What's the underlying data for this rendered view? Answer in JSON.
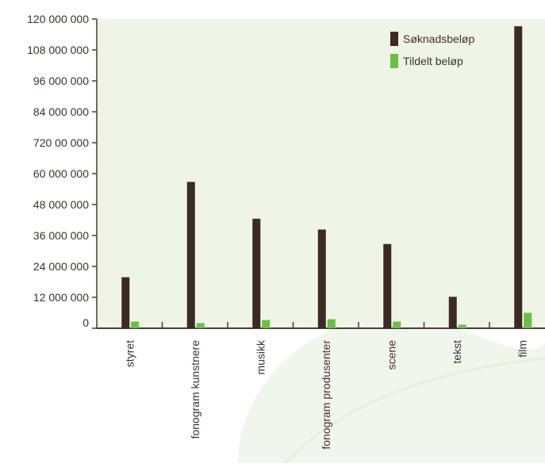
{
  "chart_data": {
    "type": "bar",
    "categories": [
      "styret",
      "fonogram kunstnere",
      "musikk",
      "fonogram produsenter",
      "scene",
      "tekst",
      "film"
    ],
    "series": [
      {
        "name": "Søknadsbeløp",
        "color": "#3b2a26",
        "values": [
          19800000,
          56800000,
          42500000,
          38300000,
          32700000,
          12200000,
          117200000
        ]
      },
      {
        "name": "Tildelt beløp",
        "color": "#6bbf44",
        "values": [
          2600000,
          2000000,
          3200000,
          3500000,
          2600000,
          1400000,
          6000000
        ]
      }
    ],
    "yticks": [
      {
        "value": 0,
        "label": "0"
      },
      {
        "value": 12000000,
        "label": "12 000 000"
      },
      {
        "value": 24000000,
        "label": "24 000 000"
      },
      {
        "value": 36000000,
        "label": "36 000 000"
      },
      {
        "value": 48000000,
        "label": "48 000 000"
      },
      {
        "value": 60000000,
        "label": "60 000 000"
      },
      {
        "value": 72000000,
        "label": "720 00 000"
      },
      {
        "value": 84000000,
        "label": "84 000 000"
      },
      {
        "value": 96000000,
        "label": "96 000 000"
      },
      {
        "value": 108000000,
        "label": "108 000 000"
      },
      {
        "value": 120000000,
        "label": "120 000 000"
      }
    ],
    "ylim": [
      0,
      120000000
    ],
    "title": "",
    "xlabel": "",
    "ylabel": "",
    "legend_position": "top-right",
    "grid": false,
    "plot_background": "#eef5e6",
    "axis_color": "#4a3b37"
  }
}
